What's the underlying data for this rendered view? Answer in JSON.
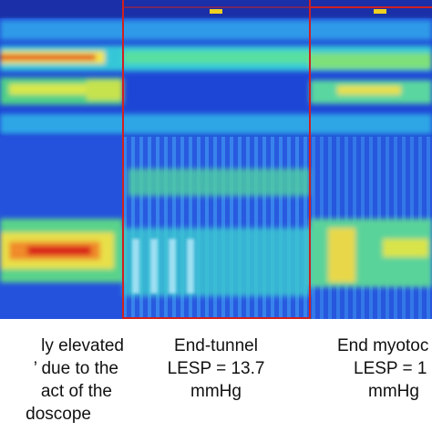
{
  "panels": [
    {
      "caption_lines": [
        "ly elevated",
        "’ due to the",
        "act of the",
        "doscope"
      ]
    },
    {
      "caption_lines": [
        "End-tunnel",
        "LESP = 13.7",
        "mmHg"
      ]
    },
    {
      "caption_lines": [
        "End myotoc",
        "LESP = 1",
        "mmHg"
      ]
    }
  ]
}
